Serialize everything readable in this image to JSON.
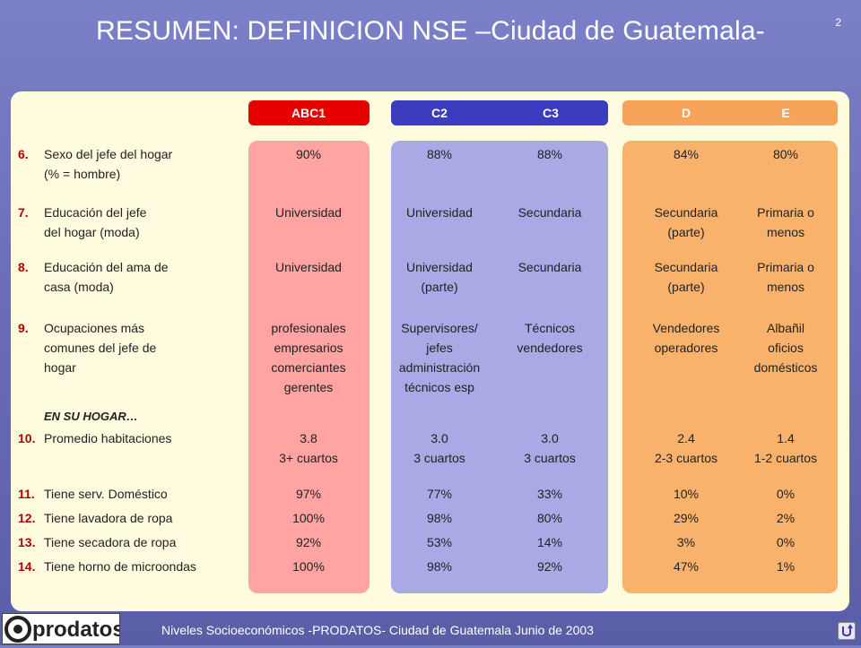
{
  "title": "RESUMEN: DEFINICION NSE –Ciudad de Guatemala-",
  "page_number": "2",
  "columns": {
    "abc1": "ABC1",
    "c2": "C2",
    "c3": "C3",
    "d": "D",
    "e": "E"
  },
  "colors": {
    "abc1_header": "#e60000",
    "abc1_bg": "#ffa3a3",
    "c_header": "#3c3cc0",
    "c_bg": "#a9a9e6",
    "de_header": "#f7a45a",
    "de_bg": "#f9b26c",
    "number": "#b00000"
  },
  "section_label": "EN SU HOGAR…",
  "rows": [
    {
      "num": "6.",
      "label": [
        "Sexo del jefe del hogar",
        "(% = hombre)"
      ],
      "abc1": [
        "90%"
      ],
      "c2": [
        "88%"
      ],
      "c3": [
        "88%"
      ],
      "d": [
        "84%"
      ],
      "e": [
        "80%"
      ]
    },
    {
      "num": "7.",
      "label": [
        "Educación del jefe",
        "del hogar (moda)"
      ],
      "abc1": [
        "Universidad"
      ],
      "c2": [
        "Universidad"
      ],
      "c3": [
        "Secundaria"
      ],
      "d": [
        "Secundaria",
        "(parte)"
      ],
      "e": [
        "Primaria o",
        "menos"
      ]
    },
    {
      "num": "8.",
      "label": [
        "Educación del ama de",
        "casa (moda)"
      ],
      "abc1": [
        "Universidad"
      ],
      "c2": [
        "Universidad",
        "(parte)"
      ],
      "c3": [
        "Secundaria"
      ],
      "d": [
        "Secundaria",
        "(parte)"
      ],
      "e": [
        "Primaria o",
        "menos"
      ]
    },
    {
      "num": "9.",
      "label": [
        "Ocupaciones más",
        "comunes del jefe de",
        "hogar"
      ],
      "abc1": [
        "profesionales",
        "empresarios",
        "comerciantes",
        "gerentes"
      ],
      "c2": [
        "Supervisores/",
        "jefes",
        "administración",
        "técnicos esp"
      ],
      "c3": [
        "Técnicos",
        "vendedores"
      ],
      "d": [
        "Vendedores",
        "operadores"
      ],
      "e": [
        "Albañil",
        "oficios",
        "domésticos"
      ]
    },
    {
      "num": "10.",
      "label": [
        "Promedio habitaciones"
      ],
      "abc1": [
        "3.8",
        "3+ cuartos"
      ],
      "c2": [
        "3.0",
        "3 cuartos"
      ],
      "c3": [
        "3.0",
        "3 cuartos"
      ],
      "d": [
        "2.4",
        "2-3 cuartos"
      ],
      "e": [
        "1.4",
        "1-2 cuartos"
      ]
    },
    {
      "num": "11.",
      "label": [
        "Tiene serv. Doméstico"
      ],
      "abc1": [
        "97%"
      ],
      "c2": [
        "77%"
      ],
      "c3": [
        "33%"
      ],
      "d": [
        "10%"
      ],
      "e": [
        "0%"
      ]
    },
    {
      "num": "12.",
      "label": [
        "Tiene lavadora de ropa"
      ],
      "abc1": [
        "100%"
      ],
      "c2": [
        "98%"
      ],
      "c3": [
        "80%"
      ],
      "d": [
        "29%"
      ],
      "e": [
        "2%"
      ]
    },
    {
      "num": "13.",
      "label": [
        "Tiene secadora de ropa"
      ],
      "abc1": [
        "92%"
      ],
      "c2": [
        "53%"
      ],
      "c3": [
        "14%"
      ],
      "d": [
        "3%"
      ],
      "e": [
        "0%"
      ]
    },
    {
      "num": "14.",
      "label": [
        "Tiene horno de microondas"
      ],
      "abc1": [
        "100%"
      ],
      "c2": [
        "98%"
      ],
      "c3": [
        "92%"
      ],
      "d": [
        "47%"
      ],
      "e": [
        "1%"
      ]
    }
  ],
  "footer": {
    "logo_text": "prodatos",
    "text": "Niveles Socioeconómicos -PRODATOS- Ciudad de Guatemala Junio de 2003",
    "icon": "return-icon"
  }
}
